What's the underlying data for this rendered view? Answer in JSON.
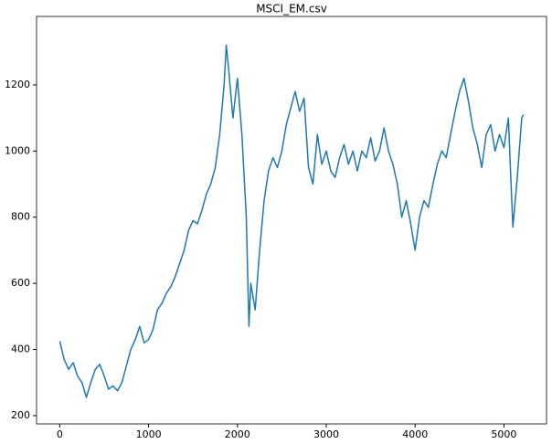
{
  "chart_data": {
    "type": "line",
    "title": "MSCI_EM.csv",
    "x": [
      0,
      50,
      100,
      150,
      200,
      250,
      300,
      350,
      400,
      450,
      500,
      550,
      600,
      650,
      700,
      750,
      800,
      850,
      900,
      950,
      1000,
      1050,
      1100,
      1150,
      1200,
      1250,
      1300,
      1350,
      1400,
      1450,
      1500,
      1550,
      1600,
      1650,
      1700,
      1750,
      1800,
      1850,
      1875,
      1900,
      1950,
      2000,
      2050,
      2100,
      2130,
      2150,
      2200,
      2250,
      2300,
      2350,
      2400,
      2450,
      2500,
      2550,
      2600,
      2650,
      2700,
      2750,
      2800,
      2850,
      2900,
      2950,
      3000,
      3050,
      3100,
      3150,
      3200,
      3250,
      3300,
      3350,
      3400,
      3450,
      3500,
      3550,
      3600,
      3650,
      3700,
      3750,
      3800,
      3850,
      3900,
      3950,
      4000,
      4050,
      4100,
      4150,
      4200,
      4250,
      4300,
      4350,
      4400,
      4450,
      4500,
      4550,
      4600,
      4650,
      4700,
      4750,
      4800,
      4850,
      4900,
      4950,
      5000,
      5050,
      5080,
      5100,
      5150,
      5200,
      5218
    ],
    "series": [
      {
        "color": "#1f77b4",
        "values": [
          425,
          370,
          340,
          360,
          320,
          300,
          255,
          300,
          340,
          355,
          320,
          280,
          290,
          275,
          300,
          350,
          400,
          430,
          470,
          420,
          430,
          460,
          520,
          540,
          570,
          590,
          620,
          660,
          700,
          760,
          790,
          780,
          820,
          870,
          900,
          950,
          1050,
          1200,
          1320,
          1250,
          1100,
          1220,
          1050,
          800,
          470,
          600,
          520,
          700,
          850,
          940,
          980,
          950,
          1000,
          1080,
          1130,
          1180,
          1120,
          1160,
          950,
          900,
          1050,
          960,
          1000,
          940,
          920,
          980,
          1020,
          960,
          1000,
          940,
          1000,
          980,
          1040,
          970,
          1000,
          1070,
          1000,
          960,
          900,
          800,
          850,
          780,
          700,
          800,
          850,
          830,
          900,
          960,
          1000,
          980,
          1050,
          1120,
          1180,
          1220,
          1150,
          1070,
          1020,
          950,
          1050,
          1080,
          1000,
          1050,
          1010,
          1100,
          900,
          770,
          920,
          1100,
          1110
        ]
      }
    ],
    "xlim": [
      -261,
      5479
    ],
    "xticks": [
      0,
      1000,
      2000,
      3000,
      4000,
      5000
    ],
    "ylim": [
      175,
      1407
    ],
    "yticks": [
      200,
      400,
      600,
      800,
      1000,
      1200
    ]
  }
}
